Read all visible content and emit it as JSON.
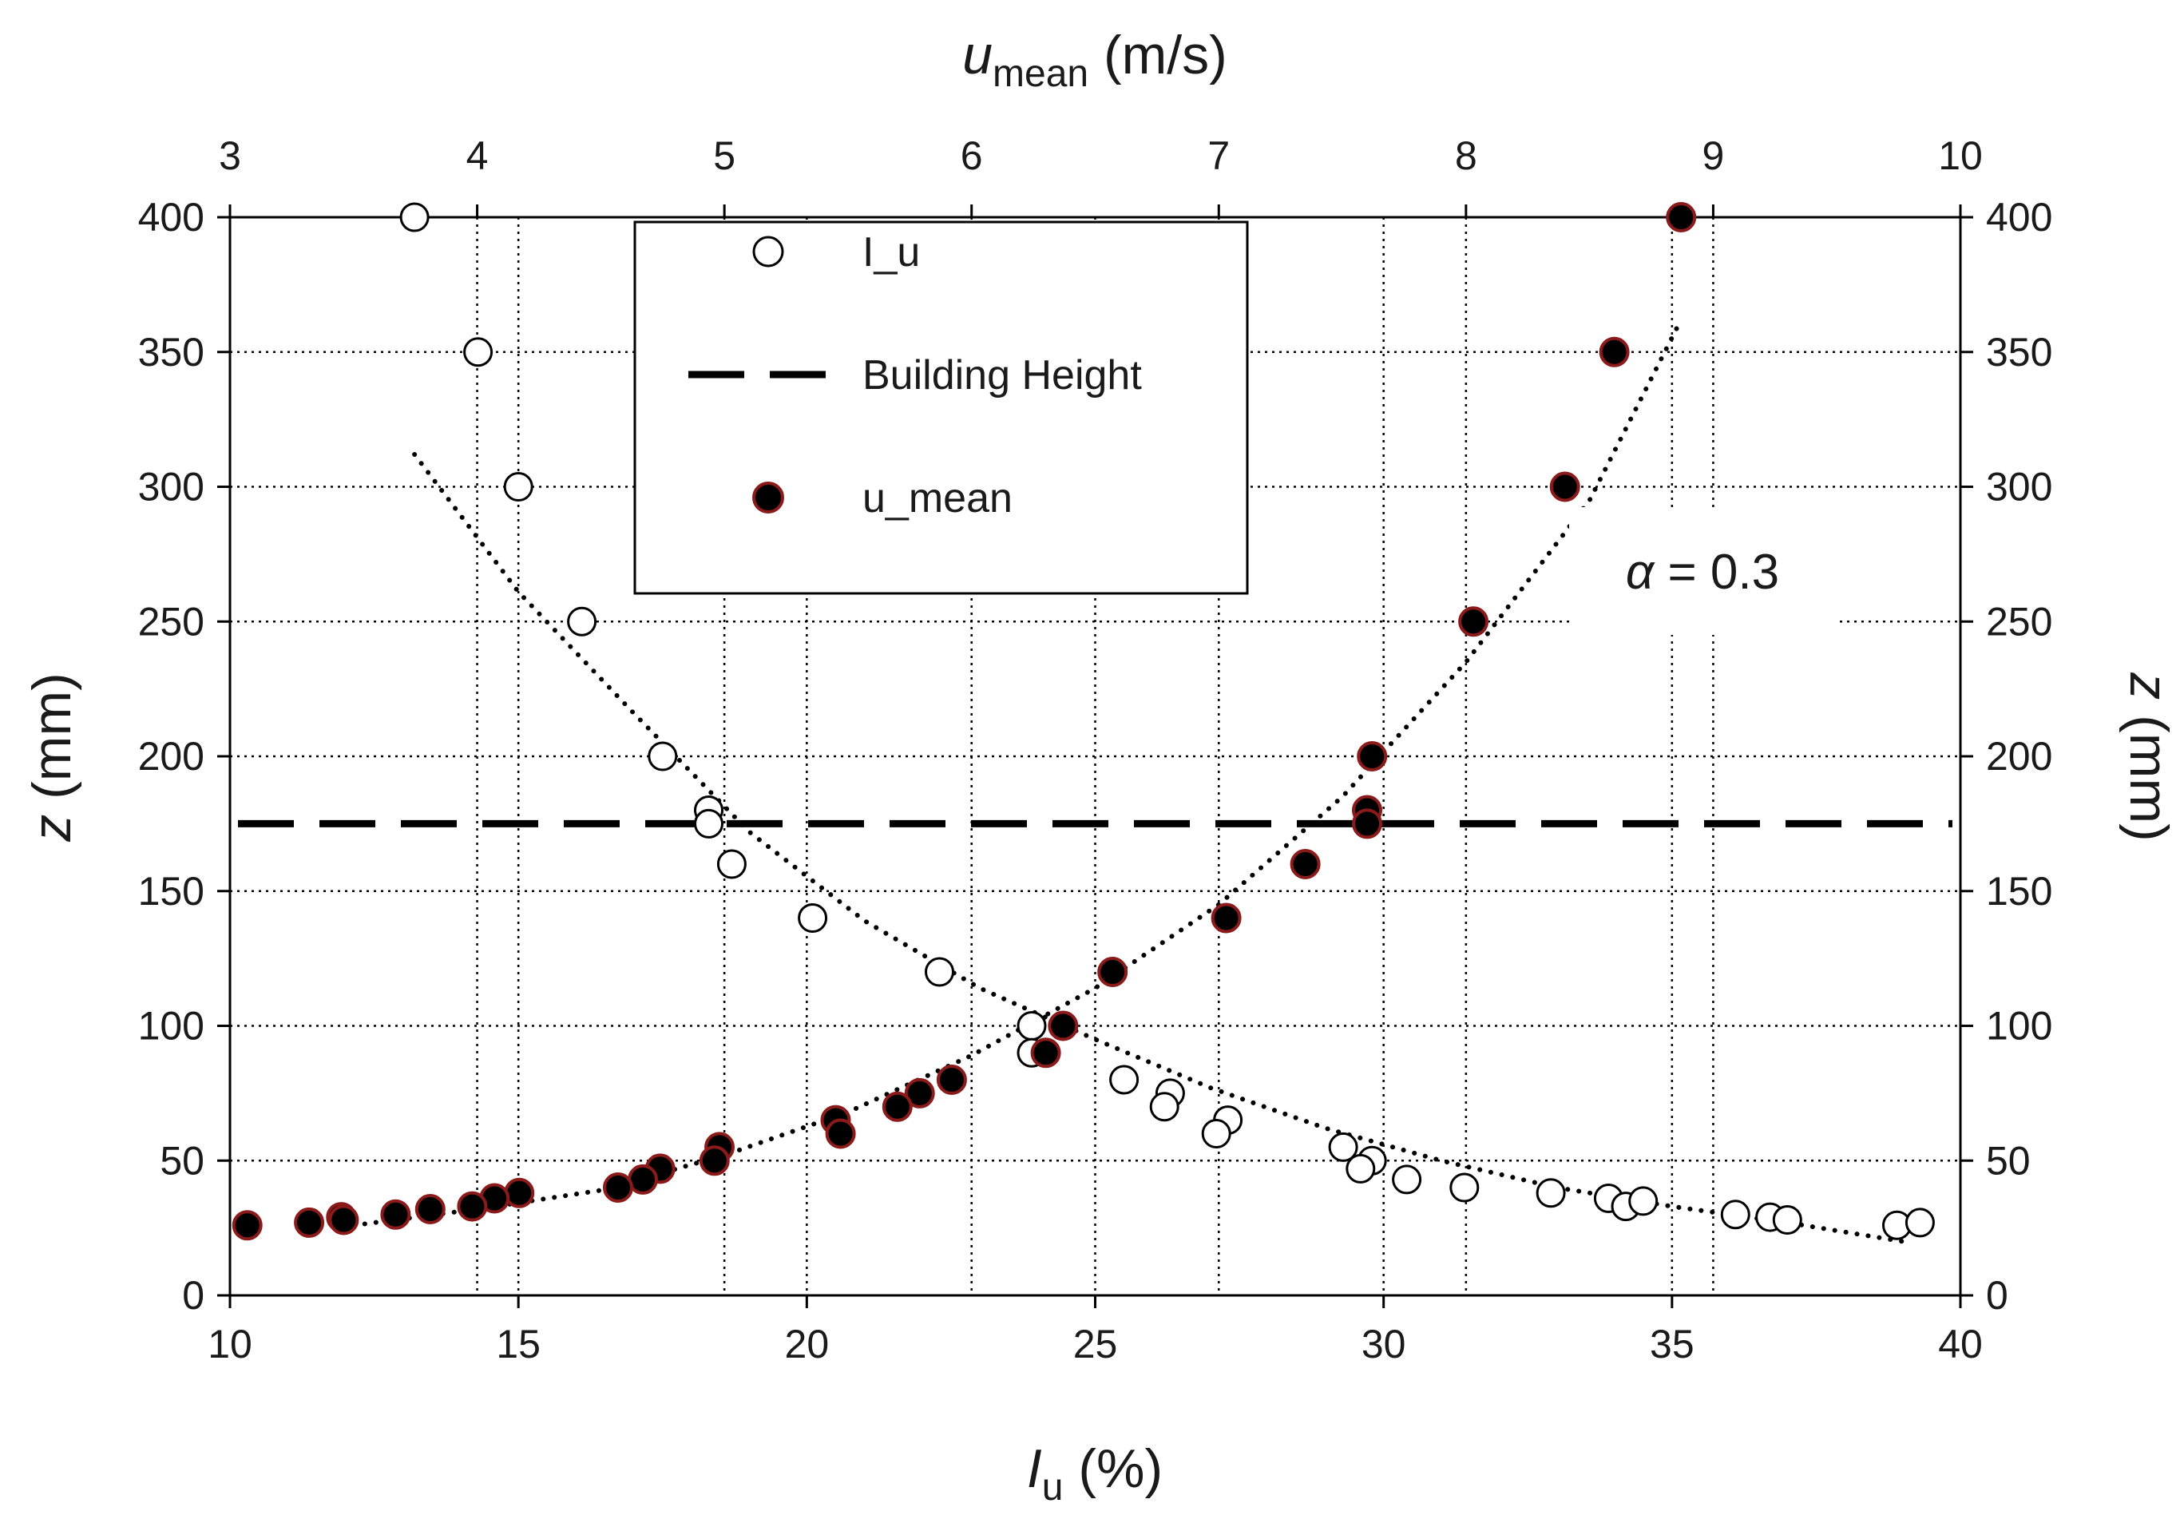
{
  "chart_data": {
    "type": "scatter",
    "axes": {
      "bottom": {
        "label_main": "I",
        "label_sub": "u",
        "label_rest": " (%)",
        "range": [
          10,
          40
        ],
        "ticks": [
          10,
          15,
          20,
          25,
          30,
          35,
          40
        ]
      },
      "top": {
        "label_main": "u",
        "label_sub": "mean",
        "label_rest": " (m/s)",
        "range": [
          3,
          10
        ],
        "ticks": [
          3,
          4,
          5,
          6,
          7,
          8,
          9,
          10
        ]
      },
      "left": {
        "label_main": "z",
        "label_rest": " (mm)",
        "range": [
          0,
          400
        ],
        "ticks": [
          0,
          50,
          100,
          150,
          200,
          250,
          300,
          350,
          400
        ]
      },
      "right": {
        "label_main": "z",
        "label_rest": " (mm)",
        "range": [
          0,
          400
        ],
        "ticks": [
          0,
          50,
          100,
          150,
          200,
          250,
          300,
          350,
          400
        ]
      }
    },
    "grid": "dotted",
    "legend": {
      "position": "top-center",
      "entries": [
        {
          "label": "I_u",
          "marker": "open-circle"
        },
        {
          "label": "Building Height",
          "marker": "dashed-line"
        },
        {
          "label": "u_mean",
          "marker": "filled-circle"
        }
      ]
    },
    "annotation": {
      "symbol": "α",
      "text": " = 0.3"
    },
    "building_height_z": 175,
    "series": [
      {
        "name": "I_u",
        "axis_x": "bottom",
        "points": [
          [
            13.2,
            400
          ],
          [
            14.3,
            350
          ],
          [
            15.0,
            300
          ],
          [
            16.1,
            250
          ],
          [
            17.5,
            200
          ],
          [
            18.3,
            180
          ],
          [
            18.3,
            175
          ],
          [
            18.7,
            160
          ],
          [
            20.1,
            140
          ],
          [
            22.3,
            120
          ],
          [
            23.9,
            100
          ],
          [
            23.9,
            90
          ],
          [
            25.5,
            80
          ],
          [
            26.3,
            75
          ],
          [
            26.2,
            70
          ],
          [
            27.3,
            65
          ],
          [
            27.1,
            60
          ],
          [
            29.3,
            55
          ],
          [
            29.8,
            50
          ],
          [
            29.6,
            47
          ],
          [
            30.4,
            43
          ],
          [
            31.4,
            40
          ],
          [
            32.9,
            38
          ],
          [
            33.9,
            36
          ],
          [
            34.2,
            33
          ],
          [
            34.5,
            35
          ],
          [
            36.1,
            30
          ],
          [
            36.7,
            29
          ],
          [
            37.0,
            28
          ],
          [
            38.9,
            26
          ],
          [
            39.3,
            27
          ]
        ],
        "trendline": [
          [
            13.2,
            312
          ],
          [
            15,
            261
          ],
          [
            17,
            216
          ],
          [
            19,
            172
          ],
          [
            21,
            139
          ],
          [
            23,
            114
          ],
          [
            25,
            95
          ],
          [
            27,
            77
          ],
          [
            29,
            62
          ],
          [
            31,
            50
          ],
          [
            33,
            40
          ],
          [
            35,
            33
          ],
          [
            37,
            27
          ],
          [
            39,
            20
          ]
        ]
      },
      {
        "name": "u_mean",
        "axis_x": "top",
        "points": [
          [
            8.87,
            400
          ],
          [
            8.6,
            350
          ],
          [
            8.4,
            300
          ],
          [
            8.03,
            250
          ],
          [
            7.62,
            200
          ],
          [
            7.6,
            180
          ],
          [
            7.6,
            175
          ],
          [
            7.35,
            160
          ],
          [
            7.03,
            140
          ],
          [
            6.57,
            120
          ],
          [
            6.37,
            100
          ],
          [
            6.3,
            90
          ],
          [
            5.92,
            80
          ],
          [
            5.79,
            75
          ],
          [
            5.7,
            70
          ],
          [
            5.45,
            65
          ],
          [
            5.47,
            60
          ],
          [
            4.98,
            55
          ],
          [
            4.96,
            50
          ],
          [
            4.74,
            47
          ],
          [
            4.67,
            43
          ],
          [
            4.57,
            40
          ],
          [
            4.17,
            38
          ],
          [
            4.07,
            36
          ],
          [
            3.98,
            33
          ],
          [
            3.81,
            32
          ],
          [
            3.67,
            30
          ],
          [
            3.45,
            29
          ],
          [
            3.32,
            27
          ],
          [
            3.07,
            26
          ],
          [
            3.46,
            28
          ]
        ],
        "trendline": [
          [
            3.5,
            26
          ],
          [
            4,
            32
          ],
          [
            4.5,
            39
          ],
          [
            5,
            52
          ],
          [
            5.5,
            68
          ],
          [
            6,
            89
          ],
          [
            6.5,
            114
          ],
          [
            7,
            145
          ],
          [
            7.5,
            185
          ],
          [
            8,
            235
          ],
          [
            8.5,
            295
          ],
          [
            8.87,
            362
          ]
        ]
      }
    ]
  }
}
